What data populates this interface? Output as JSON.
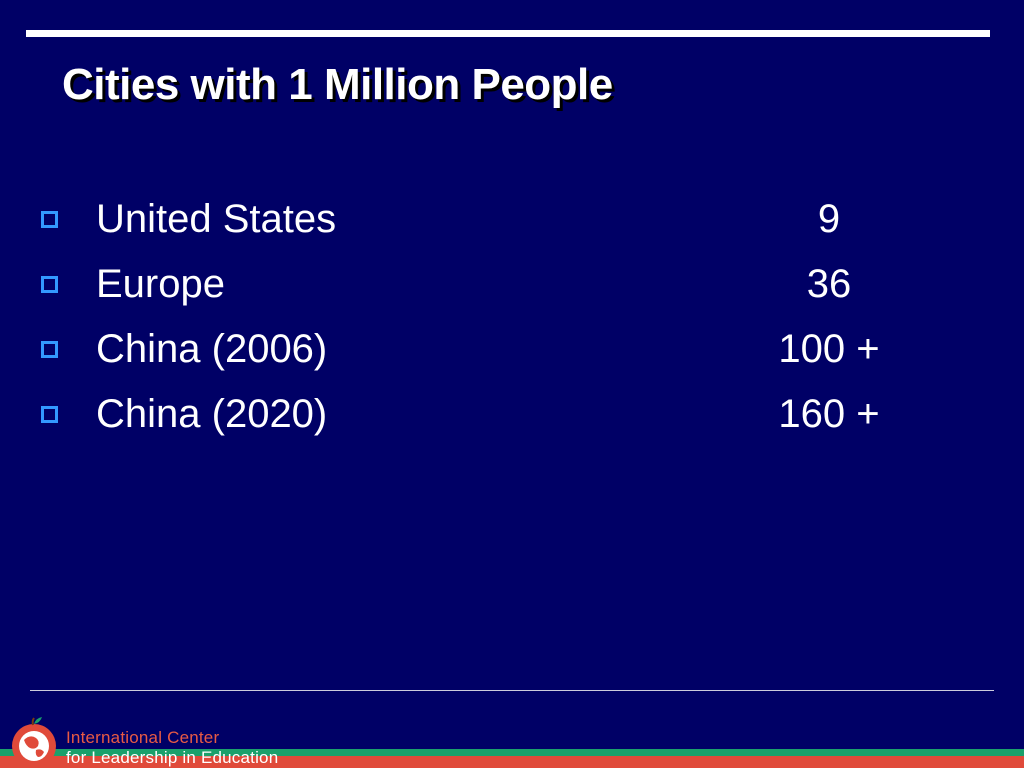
{
  "slide": {
    "title": "Cities with 1 Million People"
  },
  "rows": [
    {
      "label": "United States",
      "value": "9"
    },
    {
      "label": "Europe",
      "value": "36"
    },
    {
      "label": "China (2006)",
      "value": "100 +"
    },
    {
      "label": "China (2020)",
      "value": "160 +"
    }
  ],
  "footer": {
    "org_line1": "International Center",
    "org_line2": "for Leadership in Education"
  },
  "colors": {
    "background": "#000066",
    "bullet": "#3399ff",
    "accent_green": "#1aa06b",
    "accent_red": "#e04a3a"
  },
  "icons": {
    "bullet": "hollow-square-bullet-icon",
    "logo": "apple-globe-logo-icon"
  }
}
